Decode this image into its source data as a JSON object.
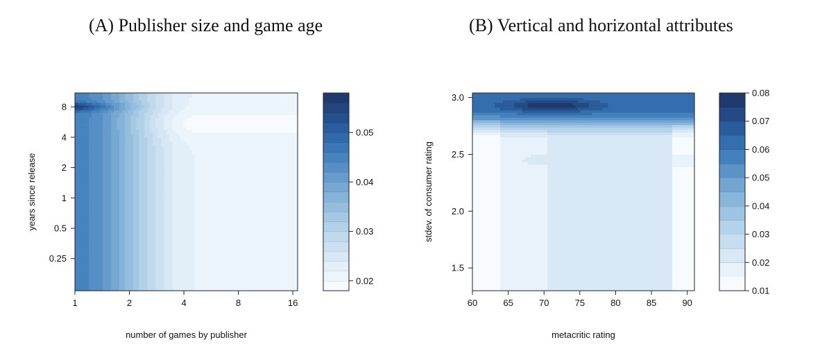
{
  "colors": {
    "low": "#f7fbff",
    "high": "#1f3a6e",
    "ramp": [
      "#f7fbff",
      "#e3eff8",
      "#cfe2f2",
      "#b6d3ea",
      "#9bc1e0",
      "#7eaed6",
      "#5f97c9",
      "#427fbb",
      "#2f67aa",
      "#244f8c",
      "#1f3a6e"
    ]
  },
  "chart_data": [
    {
      "type": "heatmap",
      "title": "(A) Publisher size and game age",
      "xlabel": "number of games by publisher",
      "ylabel": "years since release",
      "x_ticks": [
        "1",
        "2",
        "4",
        "8",
        "16"
      ],
      "x_tick_values": [
        1,
        2,
        4,
        8,
        16
      ],
      "y_ticks": [
        "0.25",
        "0.5",
        "1",
        "2",
        "4",
        "8"
      ],
      "y_tick_values": [
        0.25,
        0.5,
        1,
        2,
        4,
        8
      ],
      "x_scale": "log2",
      "y_scale": "log2",
      "xlim": [
        1,
        17
      ],
      "ylim": [
        0.12,
        11
      ],
      "colorbar": {
        "ticks": [
          "0.02",
          "0.03",
          "0.04",
          "0.05"
        ],
        "tick_values": [
          0.02,
          0.03,
          0.04,
          0.05
        ],
        "range": [
          0.018,
          0.058
        ],
        "levels": 20
      },
      "description_values": {
        "max_near": {
          "x": 1,
          "y": 8,
          "value": 0.057
        },
        "left_edge_value": 0.045,
        "x2_value": 0.038,
        "x4plus_value": 0.022,
        "top_right_value": 0.019
      }
    },
    {
      "type": "heatmap",
      "title": "(B) Vertical and horizontal attributes",
      "xlabel": "metacritic rating",
      "ylabel": "stdev. of consumer rating",
      "x_ticks": [
        "60",
        "65",
        "70",
        "75",
        "80",
        "85",
        "90"
      ],
      "x_tick_values": [
        60,
        65,
        70,
        75,
        80,
        85,
        90
      ],
      "y_ticks": [
        "1.5",
        "2.0",
        "2.5",
        "3.0"
      ],
      "y_tick_values": [
        1.5,
        2.0,
        2.5,
        3.0
      ],
      "xlim": [
        60,
        91
      ],
      "ylim": [
        1.3,
        3.04
      ],
      "colorbar": {
        "ticks": [
          "0.01",
          "0.02",
          "0.03",
          "0.04",
          "0.05",
          "0.06",
          "0.07",
          "0.08"
        ],
        "tick_values": [
          0.01,
          0.02,
          0.03,
          0.04,
          0.05,
          0.06,
          0.07,
          0.08
        ],
        "range": [
          0.01,
          0.08
        ],
        "levels": 14
      },
      "description_values": {
        "max_near": {
          "x": 71,
          "y": 2.93,
          "value": 0.08
        },
        "top_band_value": 0.062,
        "middle_value": 0.022,
        "left_strip_value": 0.012,
        "right_strip_value": 0.014
      }
    }
  ]
}
